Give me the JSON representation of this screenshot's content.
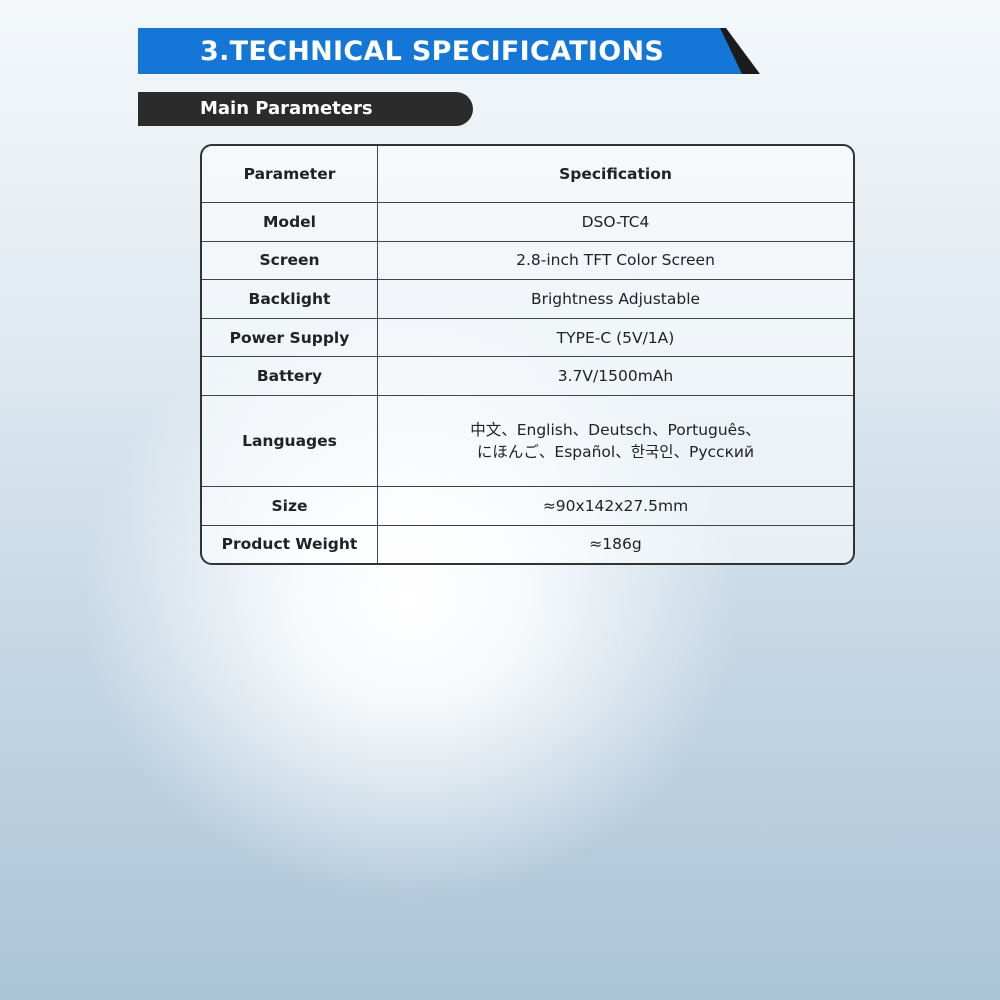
{
  "header": {
    "title": "3.TECHNICAL SPECIFICATIONS",
    "subtitle": "Main Parameters"
  },
  "table": {
    "columns": [
      "Parameter",
      "Specification"
    ],
    "rows": [
      [
        "Model",
        "DSO-TC4"
      ],
      [
        "Screen",
        "2.8-inch TFT Color Screen"
      ],
      [
        "Backlight",
        "Brightness Adjustable"
      ],
      [
        "Power Supply",
        "TYPE-C (5V/1A)"
      ],
      [
        "Battery",
        "3.7V/1500mAh"
      ],
      [
        "Languages",
        [
          "中文、English、Deutsch、Português、",
          "にほんご、Español、한국인、Русский"
        ]
      ],
      [
        "Size",
        "≈90x142x27.5mm"
      ],
      [
        "Product Weight",
        "≈186g"
      ]
    ]
  }
}
